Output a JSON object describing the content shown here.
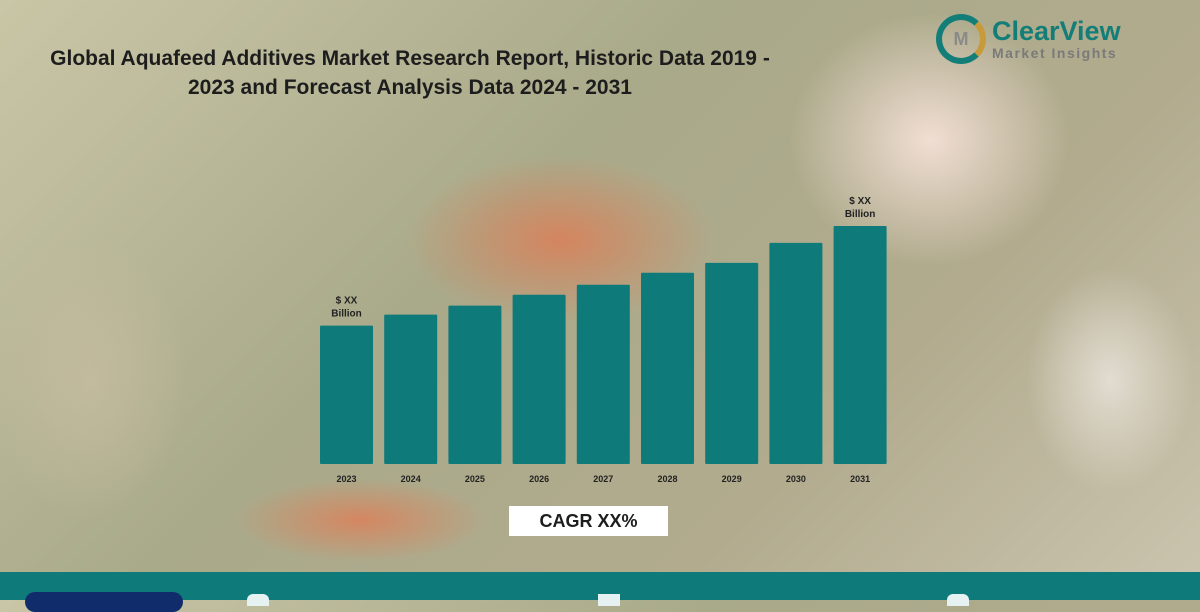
{
  "title": "Global Aquafeed Additives Market Research Report, Historic Data 2019 - 2023 and Forecast Analysis Data 2024 - 2031",
  "logo": {
    "name": "ClearView",
    "subtitle": "Market Insights",
    "mark": "M"
  },
  "cagr": "CAGR XX%",
  "colors": {
    "bar": "#0f7a7a",
    "footer": "#0f7a7a",
    "pill": "#112c6a"
  },
  "chart_data": {
    "type": "bar",
    "title": "",
    "categories": [
      "2023",
      "2024",
      "2025",
      "2026",
      "2027",
      "2028",
      "2029",
      "2030",
      "2031"
    ],
    "values": [
      139,
      150,
      159,
      170,
      180,
      192,
      202,
      222,
      239
    ],
    "value_units": "relative (unlabeled)",
    "ylim": [
      0,
      240
    ],
    "data_labels": [
      {
        "category": "2023",
        "line1": "$ XX",
        "line2": "Billion"
      },
      {
        "category": "2031",
        "line1": "$ XX",
        "line2": "Billion"
      }
    ],
    "xlabel": "",
    "ylabel": "",
    "grid": false
  }
}
